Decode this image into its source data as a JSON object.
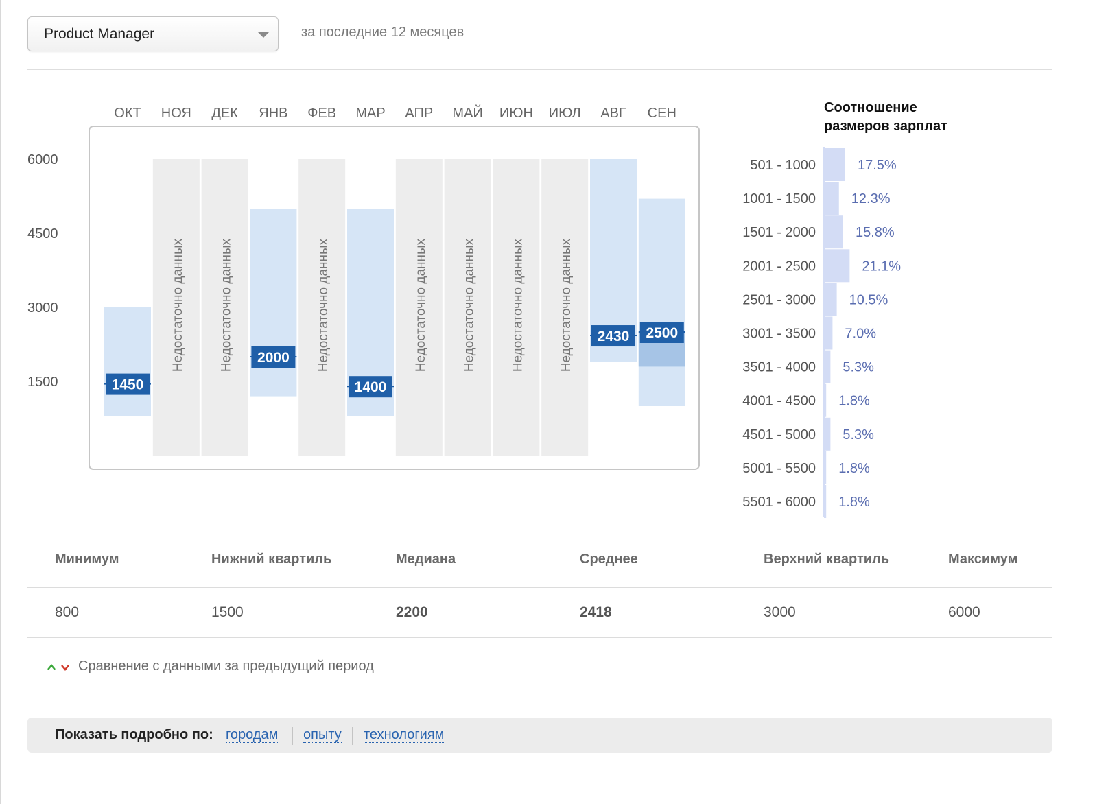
{
  "header": {
    "position_select": "Product Manager",
    "period_note": "за последние 12 месяцев"
  },
  "colors": {
    "range_fill": "#d6e5f6",
    "iqr_fill": "#a6c4e6",
    "median_badge": "#1f5fa8",
    "no_data_fill": "#ededed",
    "histogram_bar": "#d3dcf5",
    "histogram_text": "#5a6db0"
  },
  "chart_data": [
    {
      "type": "box-range",
      "title": "",
      "categories": [
        "ОКТ",
        "НОЯ",
        "ДЕК",
        "ЯНВ",
        "ФЕВ",
        "МАР",
        "АПР",
        "МАЙ",
        "ИЮН",
        "ИЮЛ",
        "АВГ",
        "СЕН"
      ],
      "y_ticks": [
        6000,
        4500,
        3000,
        1500
      ],
      "ylim": [
        0,
        6000
      ],
      "no_data_label": "Недостаточно данных",
      "months": [
        {
          "month": "ОКТ",
          "has_data": true,
          "min": 800,
          "max": 3000,
          "median": 1450
        },
        {
          "month": "НОЯ",
          "has_data": false
        },
        {
          "month": "ДЕК",
          "has_data": false
        },
        {
          "month": "ЯНВ",
          "has_data": true,
          "min": 1200,
          "max": 5000,
          "median": 2000
        },
        {
          "month": "ФЕВ",
          "has_data": false
        },
        {
          "month": "МАР",
          "has_data": true,
          "min": 800,
          "max": 5000,
          "median": 1400
        },
        {
          "month": "АПР",
          "has_data": false
        },
        {
          "month": "МАЙ",
          "has_data": false
        },
        {
          "month": "ИЮН",
          "has_data": false
        },
        {
          "month": "ИЮЛ",
          "has_data": false
        },
        {
          "month": "АВГ",
          "has_data": true,
          "min": 1900,
          "max": 6000,
          "median": 2430
        },
        {
          "month": "СЕН",
          "has_data": true,
          "min": 1000,
          "max": 5200,
          "median": 2500,
          "q1": 1800,
          "q3": 2500
        }
      ]
    },
    {
      "type": "bar",
      "title": "Соотношение размеров зарплат",
      "orientation": "horizontal",
      "categories": [
        "501 - 1000",
        "1001 - 1500",
        "1501 - 2000",
        "2001 - 2500",
        "2501 - 3000",
        "3001 - 3500",
        "3501 - 4000",
        "4001 - 4500",
        "4501 - 5000",
        "5001 - 5500",
        "5501 - 6000"
      ],
      "values": [
        17.5,
        12.3,
        15.8,
        21.1,
        10.5,
        7.0,
        5.3,
        1.8,
        5.3,
        1.8,
        1.8
      ],
      "value_labels": [
        "17.5%",
        "12.3%",
        "15.8%",
        "21.1%",
        "10.5%",
        "7.0%",
        "5.3%",
        "1.8%",
        "5.3%",
        "1.8%",
        "1.8%"
      ]
    }
  ],
  "stats": {
    "headers": [
      "Минимум",
      "Нижний квартиль",
      "Медиана",
      "Среднее",
      "Верхний квартиль",
      "Максимум"
    ],
    "values": [
      "800",
      "1500",
      "2200",
      "2418",
      "3000",
      "6000"
    ]
  },
  "compare_label": "Сравнение с данными за предыдущий период",
  "details": {
    "label": "Показать подробно по:",
    "links": [
      "городам",
      "опыту",
      "технологиям"
    ]
  }
}
